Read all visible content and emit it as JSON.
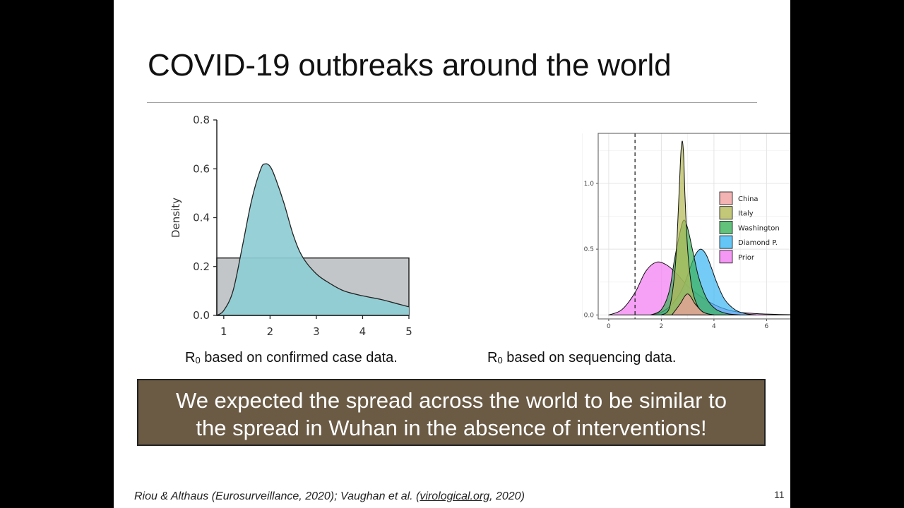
{
  "slide": {
    "title": "COVID-19 outbreaks around the world",
    "caption_left_pre": "R",
    "caption_left_sub": "0",
    "caption_left_post": " based on confirmed case data.",
    "caption_right_pre": "R",
    "caption_right_sub": "0",
    "caption_right_post": " based on sequencing data.",
    "banner_line1": "We expected the spread across the world to be similar to",
    "banner_line2": "the spread in Wuhan in the absence of interventions!",
    "citation_part1": "Riou & Althaus (Eurosurveillance, 2020); Vaughan et al. (",
    "citation_link": "virological.org",
    "citation_part2": ", 2020)",
    "page_number": "11"
  },
  "chart_data": [
    {
      "type": "area",
      "ylabel": "Density",
      "xlabel": "",
      "xlim": [
        0.85,
        5
      ],
      "ylim": [
        0,
        0.8
      ],
      "xticks": [
        "1",
        "2",
        "3",
        "4",
        "5"
      ],
      "xtick_values": [
        1,
        2,
        3,
        4,
        5
      ],
      "yticks": [
        "0.0",
        "0.2",
        "0.4",
        "0.6",
        "0.8"
      ],
      "ytick_values": [
        0,
        0.2,
        0.4,
        0.6,
        0.8
      ],
      "colors": {
        "prior": "#c3c6c8",
        "posterior": "#8ecdd4",
        "line": "#222222"
      },
      "series": [
        {
          "role": "prior",
          "x": [
            0.85,
            5
          ],
          "y": [
            0.235,
            0.235
          ]
        },
        {
          "role": "posterior",
          "x": [
            0.85,
            1.0,
            1.2,
            1.4,
            1.6,
            1.8,
            1.9,
            2.0,
            2.1,
            2.3,
            2.5,
            2.7,
            3.0,
            3.3,
            3.6,
            4.0,
            4.4,
            4.8,
            5.0
          ],
          "y": [
            0.0,
            0.02,
            0.1,
            0.28,
            0.47,
            0.6,
            0.62,
            0.61,
            0.57,
            0.46,
            0.33,
            0.24,
            0.17,
            0.13,
            0.1,
            0.08,
            0.065,
            0.045,
            0.035
          ]
        }
      ]
    },
    {
      "type": "area",
      "xlim": [
        -0.4,
        7.6
      ],
      "ylim": [
        -0.03,
        1.38
      ],
      "xticks": [
        "0",
        "2",
        "4",
        "6"
      ],
      "xtick_values": [
        0,
        2,
        4,
        6
      ],
      "yticks": [
        "0.0",
        "0.5",
        "1.0"
      ],
      "ytick_values": [
        0,
        0.5,
        1.0
      ],
      "reference_line_x": 1,
      "legend_position": "right",
      "series": [
        {
          "name": "Prior",
          "color": "#f27df2",
          "x": [
            0,
            0.5,
            1.0,
            1.4,
            1.8,
            2.2,
            2.6,
            3.0,
            3.5,
            4.0,
            4.5,
            5.0,
            5.5,
            6.0,
            6.5,
            7.0,
            7.5
          ],
          "y": [
            0.0,
            0.04,
            0.17,
            0.33,
            0.4,
            0.38,
            0.31,
            0.22,
            0.14,
            0.08,
            0.04,
            0.02,
            0.012,
            0.007,
            0.004,
            0.002,
            0.0
          ]
        },
        {
          "name": "Diamond P.",
          "color": "#3fb8f2",
          "x": [
            1.6,
            2.0,
            2.4,
            2.8,
            3.1,
            3.3,
            3.5,
            3.7,
            3.9,
            4.1,
            4.4,
            4.8,
            5.2,
            5.6
          ],
          "y": [
            0.0,
            0.02,
            0.08,
            0.2,
            0.36,
            0.46,
            0.5,
            0.46,
            0.36,
            0.25,
            0.12,
            0.04,
            0.01,
            0.0
          ]
        },
        {
          "name": "Washington",
          "color": "#3bb35a",
          "x": [
            1.6,
            2.0,
            2.3,
            2.5,
            2.7,
            2.85,
            3.0,
            3.2,
            3.4,
            3.6,
            3.8,
            4.1,
            4.5,
            5.0
          ],
          "y": [
            0.0,
            0.04,
            0.18,
            0.42,
            0.62,
            0.72,
            0.66,
            0.48,
            0.3,
            0.18,
            0.1,
            0.04,
            0.01,
            0.0
          ]
        },
        {
          "name": "Italy",
          "color": "#b4ba58",
          "x": [
            2.0,
            2.3,
            2.5,
            2.6,
            2.7,
            2.75,
            2.8,
            2.85,
            2.9,
            3.0,
            3.15,
            3.35,
            3.6,
            4.0
          ],
          "y": [
            0.0,
            0.05,
            0.3,
            0.6,
            1.05,
            1.25,
            1.32,
            1.2,
            0.9,
            0.5,
            0.22,
            0.08,
            0.02,
            0.0
          ]
        },
        {
          "name": "China",
          "color": "#f0a0a0",
          "x": [
            2.4,
            2.7,
            3.0,
            3.3,
            3.6,
            4.0
          ],
          "y": [
            0.0,
            0.08,
            0.16,
            0.08,
            0.02,
            0.0
          ]
        }
      ]
    }
  ]
}
